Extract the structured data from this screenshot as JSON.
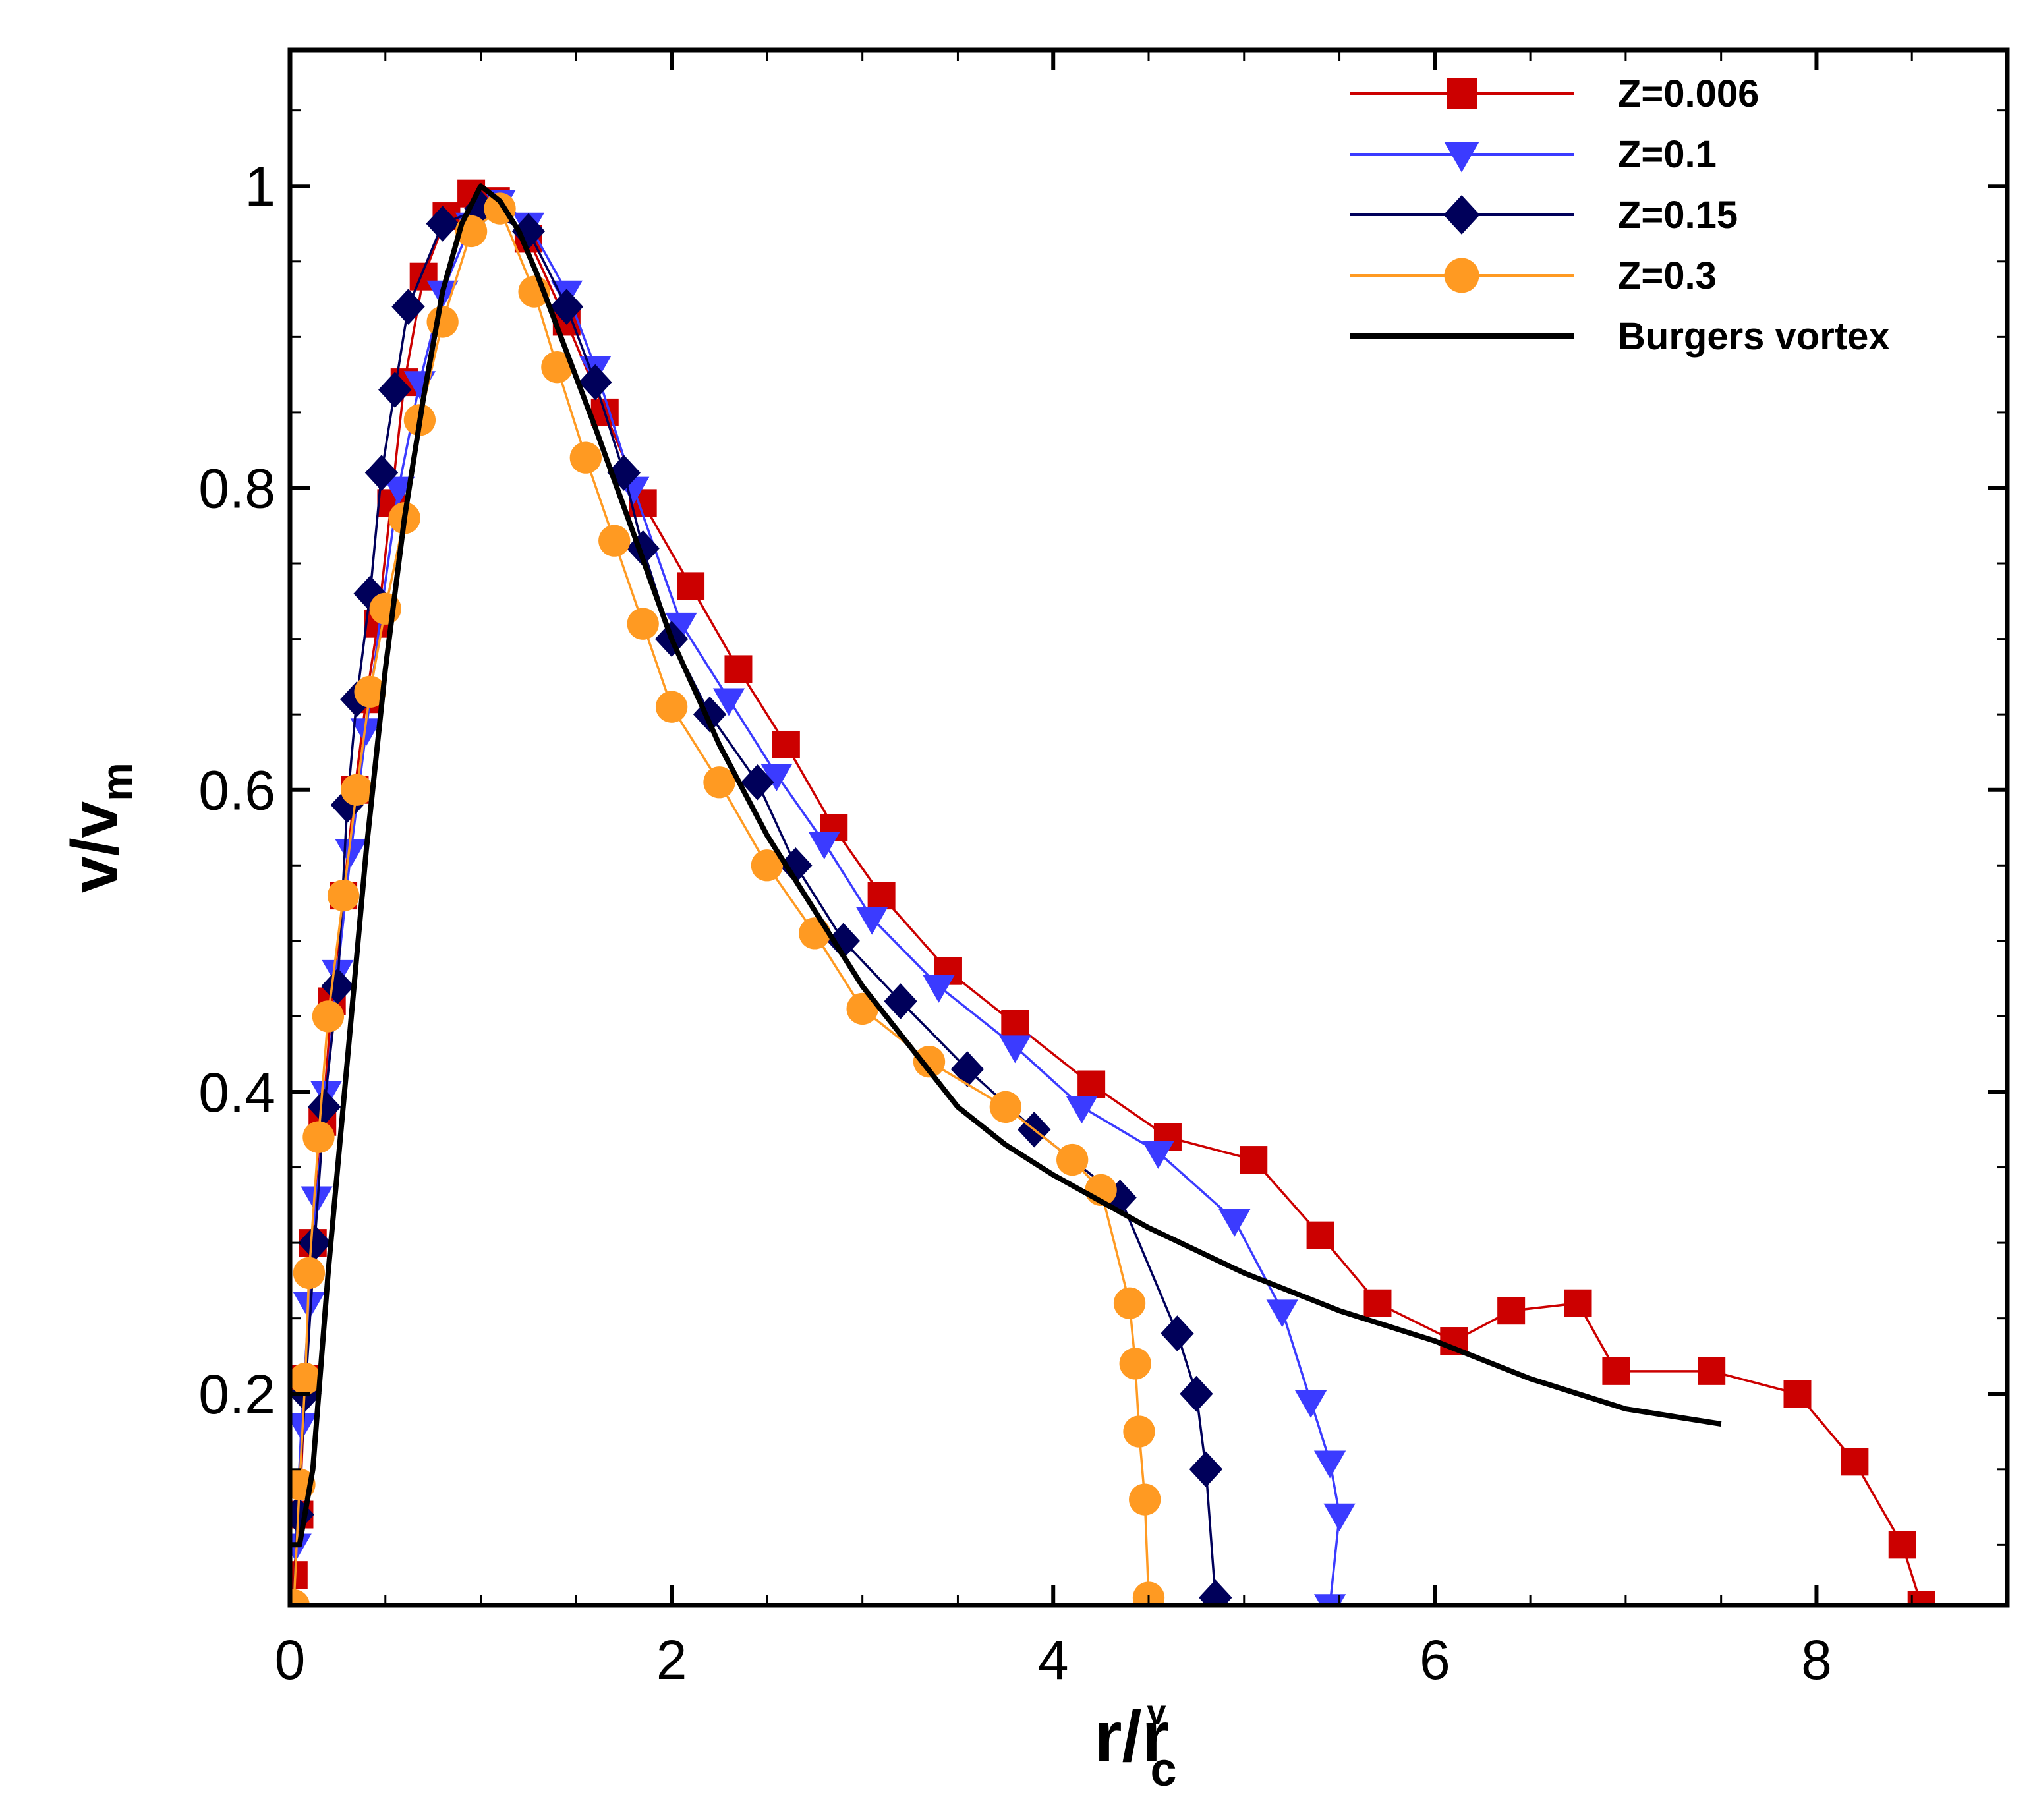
{
  "chart_data": {
    "type": "line",
    "xlabel": {
      "main": "r/r",
      "sub": "c",
      "sup": "v"
    },
    "ylabel": {
      "main": "v/v",
      "sub": "m"
    },
    "xlim": [
      0,
      9
    ],
    "ylim": [
      0.06,
      1.09
    ],
    "x_ticks": [
      0,
      2,
      4,
      6,
      8
    ],
    "x_tick_labels": [
      "0",
      "2",
      "4",
      "6",
      "8"
    ],
    "y_ticks": [
      0.2,
      0.4,
      0.6,
      0.8,
      1.0
    ],
    "y_tick_labels": [
      "0.2",
      "0.4",
      "0.6",
      "0.8",
      "1"
    ],
    "x_minor_step": 0.5,
    "y_minor_step": 0.05,
    "grid": false,
    "legend_position": "top-right",
    "series": [
      {
        "name": "Z=0.006",
        "color": "#cc0000",
        "marker": "square",
        "points": [
          [
            0.02,
            0.08
          ],
          [
            0.05,
            0.12
          ],
          [
            0.08,
            0.21
          ],
          [
            0.12,
            0.3
          ],
          [
            0.17,
            0.38
          ],
          [
            0.22,
            0.46
          ],
          [
            0.28,
            0.53
          ],
          [
            0.34,
            0.6
          ],
          [
            0.4,
            0.66
          ],
          [
            0.46,
            0.71
          ],
          [
            0.53,
            0.79
          ],
          [
            0.6,
            0.87
          ],
          [
            0.7,
            0.94
          ],
          [
            0.82,
            0.98
          ],
          [
            0.95,
            0.995
          ],
          [
            1.08,
            0.99
          ],
          [
            1.25,
            0.965
          ],
          [
            1.45,
            0.91
          ],
          [
            1.65,
            0.85
          ],
          [
            1.85,
            0.79
          ],
          [
            2.1,
            0.735
          ],
          [
            2.35,
            0.68
          ],
          [
            2.6,
            0.63
          ],
          [
            2.85,
            0.575
          ],
          [
            3.1,
            0.53
          ],
          [
            3.45,
            0.48
          ],
          [
            3.8,
            0.445
          ],
          [
            4.2,
            0.405
          ],
          [
            4.6,
            0.37
          ],
          [
            5.05,
            0.355
          ],
          [
            5.4,
            0.305
          ],
          [
            5.7,
            0.26
          ],
          [
            6.1,
            0.235
          ],
          [
            6.4,
            0.255
          ],
          [
            6.75,
            0.26
          ],
          [
            6.95,
            0.215
          ],
          [
            7.45,
            0.215
          ],
          [
            7.9,
            0.2
          ],
          [
            8.2,
            0.155
          ],
          [
            8.45,
            0.1
          ],
          [
            8.55,
            0.06
          ]
        ]
      },
      {
        "name": "Z=0.1",
        "color": "#3b3bff",
        "marker": "triangle-down",
        "points": [
          [
            0.03,
            0.1
          ],
          [
            0.06,
            0.18
          ],
          [
            0.1,
            0.26
          ],
          [
            0.14,
            0.33
          ],
          [
            0.19,
            0.4
          ],
          [
            0.25,
            0.48
          ],
          [
            0.32,
            0.56
          ],
          [
            0.4,
            0.64
          ],
          [
            0.48,
            0.72
          ],
          [
            0.57,
            0.8
          ],
          [
            0.68,
            0.87
          ],
          [
            0.8,
            0.93
          ],
          [
            0.95,
            0.975
          ],
          [
            1.1,
            0.99
          ],
          [
            1.25,
            0.975
          ],
          [
            1.45,
            0.93
          ],
          [
            1.6,
            0.88
          ],
          [
            1.8,
            0.8
          ],
          [
            2.05,
            0.71
          ],
          [
            2.3,
            0.66
          ],
          [
            2.55,
            0.61
          ],
          [
            2.8,
            0.565
          ],
          [
            3.05,
            0.515
          ],
          [
            3.4,
            0.47
          ],
          [
            3.8,
            0.43
          ],
          [
            4.15,
            0.39
          ],
          [
            4.55,
            0.36
          ],
          [
            4.95,
            0.315
          ],
          [
            5.2,
            0.255
          ],
          [
            5.35,
            0.195
          ],
          [
            5.45,
            0.155
          ],
          [
            5.5,
            0.12
          ],
          [
            5.45,
            0.06
          ]
        ]
      },
      {
        "name": "Z=0.15",
        "color": "#00005a",
        "marker": "diamond",
        "points": [
          [
            0.02,
            0.06
          ],
          [
            0.04,
            0.12
          ],
          [
            0.08,
            0.2
          ],
          [
            0.13,
            0.3
          ],
          [
            0.18,
            0.39
          ],
          [
            0.25,
            0.47
          ],
          [
            0.3,
            0.59
          ],
          [
            0.35,
            0.66
          ],
          [
            0.42,
            0.73
          ],
          [
            0.48,
            0.81
          ],
          [
            0.55,
            0.865
          ],
          [
            0.62,
            0.92
          ],
          [
            0.8,
            0.975
          ],
          [
            1.0,
            0.985
          ],
          [
            1.25,
            0.97
          ],
          [
            1.45,
            0.92
          ],
          [
            1.6,
            0.87
          ],
          [
            1.75,
            0.81
          ],
          [
            1.85,
            0.76
          ],
          [
            2.0,
            0.7
          ],
          [
            2.2,
            0.65
          ],
          [
            2.45,
            0.605
          ],
          [
            2.65,
            0.55
          ],
          [
            2.9,
            0.5
          ],
          [
            3.2,
            0.46
          ],
          [
            3.55,
            0.415
          ],
          [
            3.9,
            0.375
          ],
          [
            4.35,
            0.33
          ],
          [
            4.65,
            0.24
          ],
          [
            4.75,
            0.2
          ],
          [
            4.8,
            0.15
          ],
          [
            4.85,
            0.065
          ]
        ]
      },
      {
        "name": "Z=0.3",
        "color": "#ff9a22",
        "marker": "circle",
        "points": [
          [
            0.02,
            0.06
          ],
          [
            0.05,
            0.14
          ],
          [
            0.08,
            0.21
          ],
          [
            0.1,
            0.28
          ],
          [
            0.15,
            0.37
          ],
          [
            0.2,
            0.45
          ],
          [
            0.28,
            0.53
          ],
          [
            0.35,
            0.6
          ],
          [
            0.42,
            0.665
          ],
          [
            0.5,
            0.72
          ],
          [
            0.6,
            0.78
          ],
          [
            0.68,
            0.845
          ],
          [
            0.8,
            0.91
          ],
          [
            0.95,
            0.97
          ],
          [
            1.1,
            0.985
          ],
          [
            1.28,
            0.93
          ],
          [
            1.4,
            0.88
          ],
          [
            1.55,
            0.82
          ],
          [
            1.7,
            0.765
          ],
          [
            1.85,
            0.71
          ],
          [
            2.0,
            0.655
          ],
          [
            2.25,
            0.605
          ],
          [
            2.5,
            0.55
          ],
          [
            2.75,
            0.505
          ],
          [
            3.0,
            0.455
          ],
          [
            3.35,
            0.42
          ],
          [
            3.75,
            0.39
          ],
          [
            4.1,
            0.355
          ],
          [
            4.25,
            0.335
          ],
          [
            4.4,
            0.26
          ],
          [
            4.43,
            0.22
          ],
          [
            4.45,
            0.175
          ],
          [
            4.48,
            0.13
          ],
          [
            4.5,
            0.065
          ]
        ]
      },
      {
        "name": "Burgers vortex",
        "color": "#000000",
        "marker": "none",
        "points": [
          [
            0.0,
            0.1
          ],
          [
            0.05,
            0.1
          ],
          [
            0.12,
            0.15
          ],
          [
            0.2,
            0.28
          ],
          [
            0.3,
            0.42
          ],
          [
            0.4,
            0.56
          ],
          [
            0.5,
            0.68
          ],
          [
            0.6,
            0.78
          ],
          [
            0.7,
            0.86
          ],
          [
            0.8,
            0.93
          ],
          [
            0.9,
            0.975
          ],
          [
            1.0,
            1.0
          ],
          [
            1.1,
            0.99
          ],
          [
            1.2,
            0.97
          ],
          [
            1.3,
            0.94
          ],
          [
            1.45,
            0.89
          ],
          [
            1.6,
            0.84
          ],
          [
            1.8,
            0.77
          ],
          [
            2.0,
            0.7
          ],
          [
            2.25,
            0.63
          ],
          [
            2.5,
            0.57
          ],
          [
            2.75,
            0.52
          ],
          [
            3.0,
            0.47
          ],
          [
            3.25,
            0.43
          ],
          [
            3.5,
            0.39
          ],
          [
            3.75,
            0.365
          ],
          [
            4.0,
            0.345
          ],
          [
            4.5,
            0.31
          ],
          [
            5.0,
            0.28
          ],
          [
            5.5,
            0.255
          ],
          [
            6.0,
            0.235
          ],
          [
            6.5,
            0.21
          ],
          [
            7.0,
            0.19
          ],
          [
            7.5,
            0.18
          ]
        ]
      }
    ]
  }
}
